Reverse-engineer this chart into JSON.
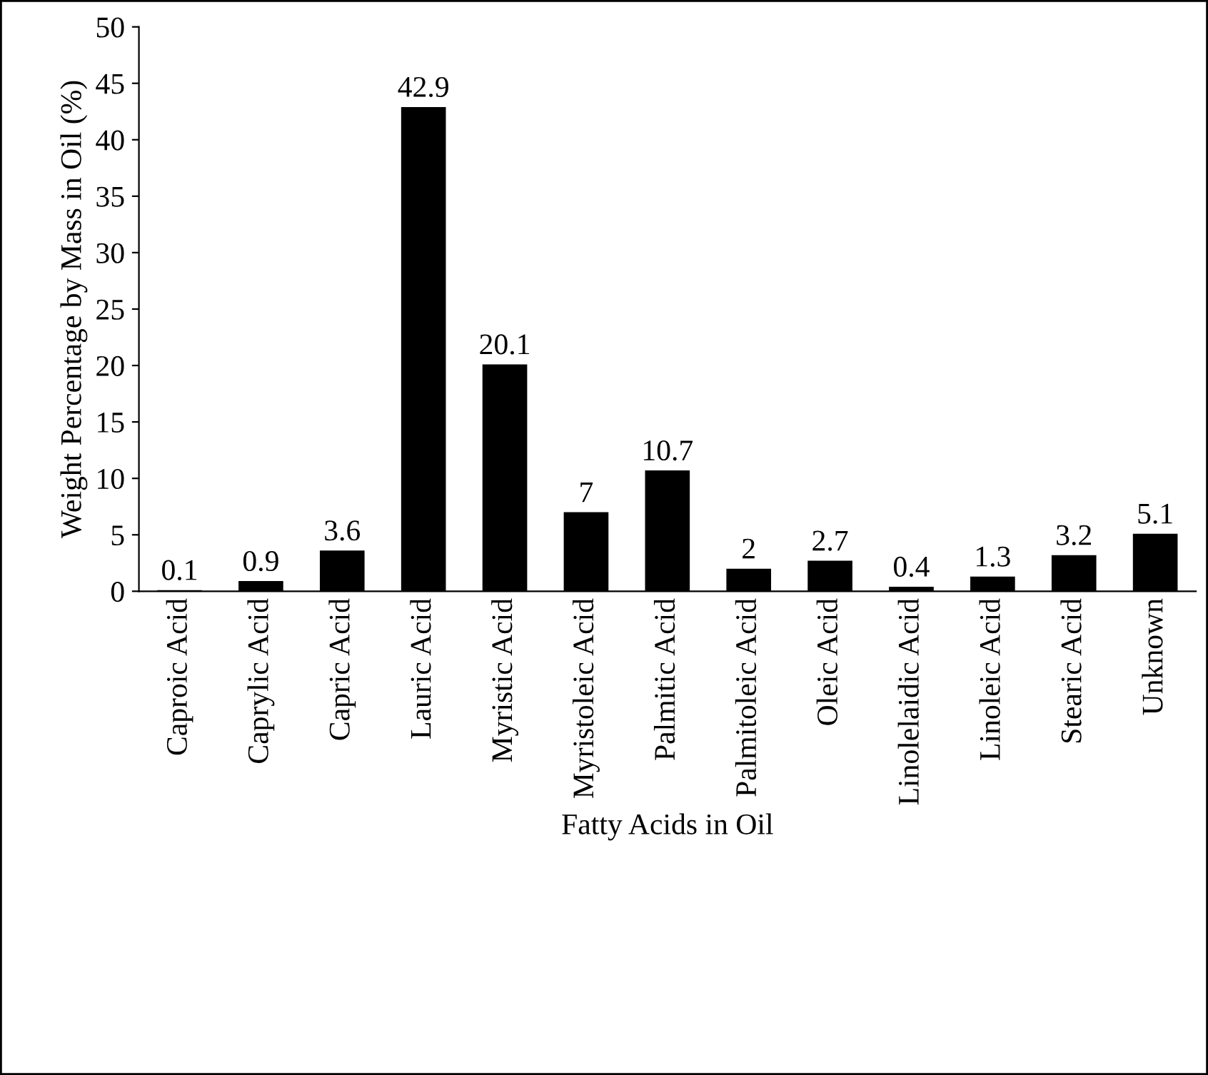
{
  "chart_data": {
    "type": "bar",
    "xlabel": "Fatty Acids in Oil",
    "ylabel": "Weight Percentage by Mass in Oil (%)",
    "categories": [
      "Caproic Acid",
      "Caprylic Acid",
      "Capric Acid",
      "Lauric Acid",
      "Myristic Acid",
      "Myristoleic Acid",
      "Palmitic Acid",
      "Palmitoleic Acid",
      "Oleic Acid",
      "Linolelaidic Acid",
      "Linoleic Acid",
      "Stearic Acid",
      "Unknown"
    ],
    "values": [
      0.1,
      0.9,
      3.6,
      42.9,
      20.1,
      7,
      10.7,
      2,
      2.7,
      0.4,
      1.3,
      3.2,
      5.1
    ],
    "color": "#000000",
    "ylim": [
      0,
      50
    ],
    "yticks": [
      0,
      5,
      10,
      15,
      20,
      25,
      30,
      35,
      40,
      45,
      50
    ],
    "grid": false,
    "legend": false,
    "data_labels": true
  }
}
